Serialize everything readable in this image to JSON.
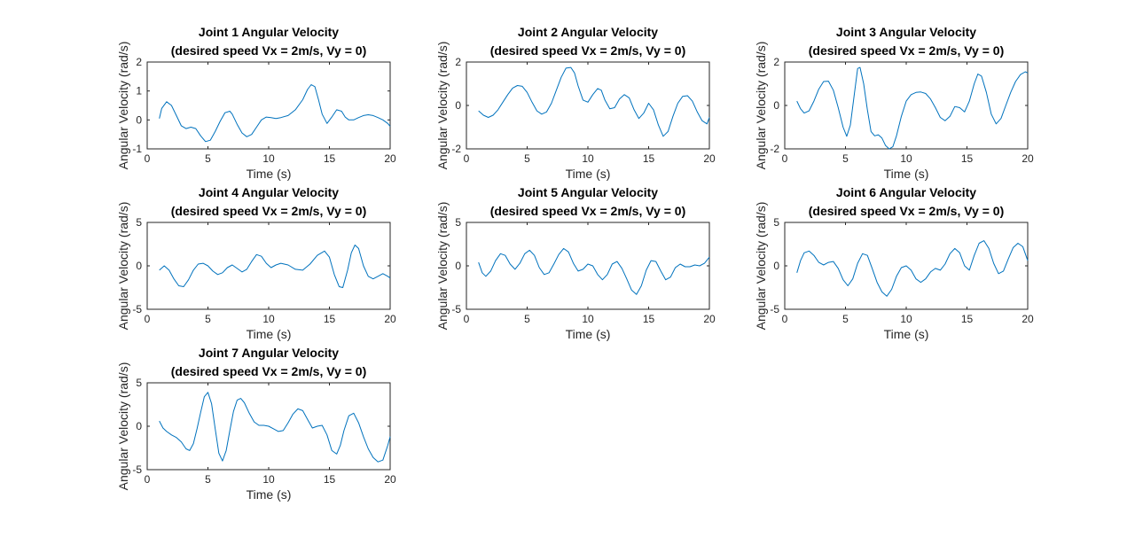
{
  "chart_data": [
    {
      "type": "line",
      "title": [
        "Joint 1 Angular Velocity",
        "(desired speed Vx = 2m/s, Vy = 0)"
      ],
      "xlabel": "Time (s)",
      "ylabel": "Angular Velocity (rad/s)",
      "xlim": [
        0,
        20
      ],
      "ylim": [
        -1,
        2
      ],
      "xticks": [
        0,
        5,
        10,
        15,
        20
      ],
      "yticks": [
        -1,
        0,
        1,
        2
      ],
      "grid": false,
      "series": [
        {
          "color": "#0072BD",
          "x": [
            1.0,
            1.2,
            1.6,
            2.0,
            2.4,
            2.8,
            3.2,
            3.6,
            4.0,
            4.4,
            4.8,
            5.2,
            5.6,
            6.0,
            6.4,
            6.8,
            7.0,
            7.4,
            7.8,
            8.2,
            8.6,
            9.0,
            9.4,
            9.8,
            10.2,
            10.6,
            11.0,
            11.6,
            12.2,
            12.8,
            13.2,
            13.5,
            13.8,
            14.1,
            14.4,
            14.8,
            15.2,
            15.6,
            16.0,
            16.3,
            16.6,
            17.0,
            17.4,
            17.8,
            18.2,
            18.6,
            19.0,
            19.4,
            19.8,
            20.0
          ],
          "y": [
            0.05,
            0.4,
            0.63,
            0.5,
            0.15,
            -0.2,
            -0.3,
            -0.25,
            -0.3,
            -0.55,
            -0.75,
            -0.7,
            -0.4,
            -0.05,
            0.25,
            0.3,
            0.2,
            -0.15,
            -0.45,
            -0.58,
            -0.5,
            -0.25,
            0.0,
            0.1,
            0.08,
            0.05,
            0.08,
            0.15,
            0.35,
            0.7,
            1.05,
            1.22,
            1.15,
            0.7,
            0.2,
            -0.12,
            0.1,
            0.35,
            0.3,
            0.1,
            0.0,
            0.0,
            0.08,
            0.15,
            0.18,
            0.15,
            0.08,
            0.0,
            -0.12,
            -0.22
          ]
        }
      ]
    },
    {
      "type": "line",
      "title": [
        "Joint 2 Angular Velocity",
        "(desired speed Vx = 2m/s, Vy = 0)"
      ],
      "xlabel": "Time (s)",
      "ylabel": "Angular Velocity (rad/s)",
      "xlim": [
        0,
        20
      ],
      "ylim": [
        -2,
        2
      ],
      "xticks": [
        0,
        5,
        10,
        15,
        20
      ],
      "yticks": [
        -2,
        0,
        2
      ],
      "grid": false,
      "series": [
        {
          "color": "#0072BD",
          "x": [
            1.0,
            1.4,
            1.8,
            2.2,
            2.6,
            3.0,
            3.4,
            3.8,
            4.2,
            4.6,
            5.0,
            5.4,
            5.8,
            6.2,
            6.6,
            7.0,
            7.4,
            7.8,
            8.2,
            8.6,
            8.9,
            9.2,
            9.6,
            10.0,
            10.4,
            10.8,
            11.1,
            11.4,
            11.8,
            12.2,
            12.6,
            13.0,
            13.4,
            13.8,
            14.2,
            14.6,
            15.0,
            15.4,
            15.8,
            16.2,
            16.6,
            17.0,
            17.4,
            17.8,
            18.2,
            18.6,
            19.0,
            19.4,
            19.8,
            20.0
          ],
          "y": [
            -0.25,
            -0.45,
            -0.55,
            -0.45,
            -0.2,
            0.15,
            0.5,
            0.8,
            0.92,
            0.88,
            0.6,
            0.15,
            -0.25,
            -0.4,
            -0.3,
            0.1,
            0.7,
            1.3,
            1.72,
            1.75,
            1.5,
            0.9,
            0.25,
            0.15,
            0.5,
            0.78,
            0.7,
            0.25,
            -0.15,
            -0.1,
            0.3,
            0.5,
            0.35,
            -0.2,
            -0.6,
            -0.35,
            0.1,
            -0.2,
            -0.9,
            -1.42,
            -1.2,
            -0.5,
            0.1,
            0.42,
            0.45,
            0.2,
            -0.3,
            -0.7,
            -0.85,
            -0.55
          ]
        }
      ]
    },
    {
      "type": "line",
      "title": [
        "Joint 3 Angular Velocity",
        "(desired speed Vx = 2m/s, Vy = 0)"
      ],
      "xlabel": "Time (s)",
      "ylabel": "Angular Velocity (rad/s)",
      "xlim": [
        0,
        20
      ],
      "ylim": [
        -2,
        2
      ],
      "xticks": [
        0,
        5,
        10,
        15,
        20
      ],
      "yticks": [
        -2,
        0,
        2
      ],
      "grid": false,
      "series": [
        {
          "color": "#0072BD",
          "x": [
            1.0,
            1.3,
            1.6,
            2.0,
            2.4,
            2.8,
            3.2,
            3.6,
            4.0,
            4.4,
            4.8,
            5.1,
            5.4,
            5.7,
            6.0,
            6.2,
            6.5,
            6.8,
            7.1,
            7.4,
            7.7,
            8.0,
            8.3,
            8.6,
            8.9,
            9.2,
            9.6,
            10.0,
            10.4,
            10.8,
            11.2,
            11.6,
            12.0,
            12.4,
            12.8,
            13.2,
            13.6,
            14.0,
            14.4,
            14.8,
            15.2,
            15.6,
            15.9,
            16.2,
            16.6,
            17.0,
            17.4,
            17.8,
            18.2,
            18.6,
            19.0,
            19.4,
            19.8,
            20.0
          ],
          "y": [
            0.2,
            -0.15,
            -0.35,
            -0.25,
            0.2,
            0.75,
            1.1,
            1.12,
            0.7,
            -0.1,
            -1.0,
            -1.42,
            -0.9,
            0.4,
            1.7,
            1.75,
            1.0,
            -0.2,
            -1.2,
            -1.4,
            -1.35,
            -1.5,
            -1.85,
            -2.0,
            -1.9,
            -1.4,
            -0.5,
            0.2,
            0.5,
            0.6,
            0.62,
            0.55,
            0.3,
            -0.1,
            -0.55,
            -0.7,
            -0.5,
            -0.05,
            -0.1,
            -0.3,
            0.2,
            1.0,
            1.45,
            1.35,
            0.6,
            -0.4,
            -0.85,
            -0.6,
            0.0,
            0.6,
            1.1,
            1.42,
            1.55,
            1.5
          ]
        }
      ]
    },
    {
      "type": "line",
      "title": [
        "Joint 4 Angular Velocity",
        "(desired speed Vx = 2m/s, Vy = 0)"
      ],
      "xlabel": "Time (s)",
      "ylabel": "Angular Velocity (rad/s)",
      "xlim": [
        0,
        20
      ],
      "ylim": [
        -5,
        5
      ],
      "xticks": [
        0,
        5,
        10,
        15,
        20
      ],
      "yticks": [
        -5,
        0,
        5
      ],
      "grid": false,
      "series": [
        {
          "color": "#0072BD",
          "x": [
            1.0,
            1.4,
            1.8,
            2.2,
            2.6,
            3.0,
            3.4,
            3.8,
            4.2,
            4.6,
            5.0,
            5.4,
            5.8,
            6.2,
            6.6,
            7.0,
            7.4,
            7.8,
            8.2,
            8.6,
            9.0,
            9.4,
            9.8,
            10.2,
            10.6,
            11.0,
            11.6,
            12.2,
            12.8,
            13.4,
            14.0,
            14.6,
            15.0,
            15.4,
            15.8,
            16.1,
            16.5,
            16.8,
            17.1,
            17.4,
            17.8,
            18.2,
            18.6,
            19.0,
            19.4,
            19.8,
            20.0
          ],
          "y": [
            -0.5,
            0.0,
            -0.5,
            -1.5,
            -2.3,
            -2.4,
            -1.6,
            -0.5,
            0.2,
            0.3,
            0.0,
            -0.6,
            -1.0,
            -0.8,
            -0.2,
            0.1,
            -0.3,
            -0.7,
            -0.4,
            0.5,
            1.3,
            1.1,
            0.3,
            -0.2,
            0.1,
            0.3,
            0.1,
            -0.4,
            -0.5,
            0.2,
            1.2,
            1.7,
            1.0,
            -1.0,
            -2.4,
            -2.5,
            -0.5,
            1.5,
            2.4,
            2.0,
            0.0,
            -1.2,
            -1.5,
            -1.2,
            -0.9,
            -1.2,
            -1.4
          ]
        }
      ]
    },
    {
      "type": "line",
      "title": [
        "Joint 5 Angular Velocity",
        "(desired speed Vx = 2m/s, Vy = 0)"
      ],
      "xlabel": "Time (s)",
      "ylabel": "Angular Velocity (rad/s)",
      "xlim": [
        0,
        20
      ],
      "ylim": [
        -5,
        5
      ],
      "xticks": [
        0,
        5,
        10,
        15,
        20
      ],
      "yticks": [
        -5,
        0,
        5
      ],
      "grid": false,
      "series": [
        {
          "color": "#0072BD",
          "x": [
            1.0,
            1.3,
            1.6,
            2.0,
            2.4,
            2.8,
            3.2,
            3.6,
            4.0,
            4.4,
            4.8,
            5.2,
            5.6,
            6.0,
            6.4,
            6.8,
            7.2,
            7.6,
            8.0,
            8.4,
            8.8,
            9.2,
            9.6,
            10.0,
            10.4,
            10.8,
            11.2,
            11.6,
            12.0,
            12.4,
            12.8,
            13.2,
            13.6,
            14.0,
            14.4,
            14.8,
            15.2,
            15.6,
            16.0,
            16.4,
            16.8,
            17.2,
            17.6,
            18.0,
            18.4,
            18.8,
            19.2,
            19.6,
            20.0
          ],
          "y": [
            0.4,
            -0.8,
            -1.2,
            -0.6,
            0.6,
            1.4,
            1.2,
            0.2,
            -0.4,
            0.3,
            1.4,
            1.8,
            1.2,
            -0.2,
            -1.0,
            -0.8,
            0.2,
            1.3,
            2.0,
            1.6,
            0.3,
            -0.6,
            -0.4,
            0.2,
            0.0,
            -1.0,
            -1.6,
            -1.0,
            0.2,
            0.5,
            -0.3,
            -1.5,
            -2.8,
            -3.3,
            -2.3,
            -0.5,
            0.6,
            0.5,
            -0.6,
            -1.6,
            -1.3,
            -0.2,
            0.2,
            -0.1,
            -0.1,
            0.1,
            0.0,
            0.3,
            1.0
          ]
        }
      ]
    },
    {
      "type": "line",
      "title": [
        "Joint 6 Angular Velocity",
        "(desired speed Vx = 2m/s, Vy = 0)"
      ],
      "xlabel": "Time (s)",
      "ylabel": "Angular Velocity (rad/s)",
      "xlim": [
        0,
        20
      ],
      "ylim": [
        -5,
        5
      ],
      "xticks": [
        0,
        5,
        10,
        15,
        20
      ],
      "yticks": [
        -5,
        0,
        5
      ],
      "grid": false,
      "series": [
        {
          "color": "#0072BD",
          "x": [
            1.0,
            1.3,
            1.6,
            2.0,
            2.4,
            2.8,
            3.2,
            3.6,
            4.0,
            4.4,
            4.8,
            5.2,
            5.6,
            6.0,
            6.4,
            6.8,
            7.2,
            7.6,
            8.0,
            8.4,
            8.8,
            9.2,
            9.6,
            10.0,
            10.4,
            10.8,
            11.2,
            11.6,
            12.0,
            12.4,
            12.8,
            13.2,
            13.6,
            14.0,
            14.4,
            14.8,
            15.2,
            15.6,
            16.0,
            16.4,
            16.8,
            17.2,
            17.6,
            18.0,
            18.4,
            18.8,
            19.2,
            19.6,
            20.0
          ],
          "y": [
            -0.8,
            0.6,
            1.5,
            1.7,
            1.2,
            0.4,
            0.1,
            0.4,
            0.5,
            -0.3,
            -1.6,
            -2.3,
            -1.5,
            0.3,
            1.4,
            1.2,
            -0.3,
            -1.9,
            -3.0,
            -3.5,
            -2.7,
            -1.2,
            -0.2,
            0.0,
            -0.5,
            -1.5,
            -1.9,
            -1.5,
            -0.7,
            -0.3,
            -0.5,
            0.2,
            1.4,
            2.0,
            1.5,
            0.0,
            -0.5,
            1.2,
            2.6,
            2.9,
            2.0,
            0.3,
            -0.9,
            -0.6,
            0.8,
            2.1,
            2.6,
            2.2,
            0.6
          ]
        }
      ]
    },
    {
      "type": "line",
      "title": [
        "Joint 7 Angular Velocity",
        "(desired speed Vx = 2m/s, Vy = 0)"
      ],
      "xlabel": "Time (s)",
      "ylabel": "Angular Velocity (rad/s)",
      "xlim": [
        0,
        20
      ],
      "ylim": [
        -5,
        5
      ],
      "xticks": [
        0,
        5,
        10,
        15,
        20
      ],
      "yticks": [
        -5,
        0,
        5
      ],
      "grid": false,
      "series": [
        {
          "color": "#0072BD",
          "x": [
            1.0,
            1.3,
            1.6,
            2.0,
            2.4,
            2.8,
            3.2,
            3.5,
            3.8,
            4.1,
            4.4,
            4.7,
            5.0,
            5.3,
            5.6,
            5.9,
            6.2,
            6.5,
            6.8,
            7.1,
            7.4,
            7.7,
            8.0,
            8.4,
            8.8,
            9.2,
            9.6,
            10.0,
            10.4,
            10.8,
            11.2,
            11.6,
            12.0,
            12.4,
            12.8,
            13.2,
            13.6,
            14.0,
            14.4,
            14.8,
            15.2,
            15.6,
            15.9,
            16.2,
            16.6,
            17.0,
            17.4,
            17.8,
            18.2,
            18.6,
            19.0,
            19.4,
            19.8,
            20.0
          ],
          "y": [
            0.6,
            -0.2,
            -0.6,
            -1.0,
            -1.3,
            -1.8,
            -2.6,
            -2.8,
            -2.0,
            -0.3,
            1.6,
            3.4,
            3.9,
            2.6,
            -0.3,
            -3.1,
            -4.0,
            -2.8,
            -0.5,
            1.7,
            3.0,
            3.2,
            2.7,
            1.5,
            0.5,
            0.1,
            0.1,
            0.0,
            -0.3,
            -0.6,
            -0.5,
            0.4,
            1.4,
            2.0,
            1.8,
            0.8,
            -0.2,
            0.0,
            0.1,
            -1.0,
            -2.8,
            -3.2,
            -2.2,
            -0.5,
            1.2,
            1.5,
            0.4,
            -1.2,
            -2.6,
            -3.6,
            -4.1,
            -3.9,
            -2.2,
            -1.2
          ]
        }
      ]
    }
  ]
}
